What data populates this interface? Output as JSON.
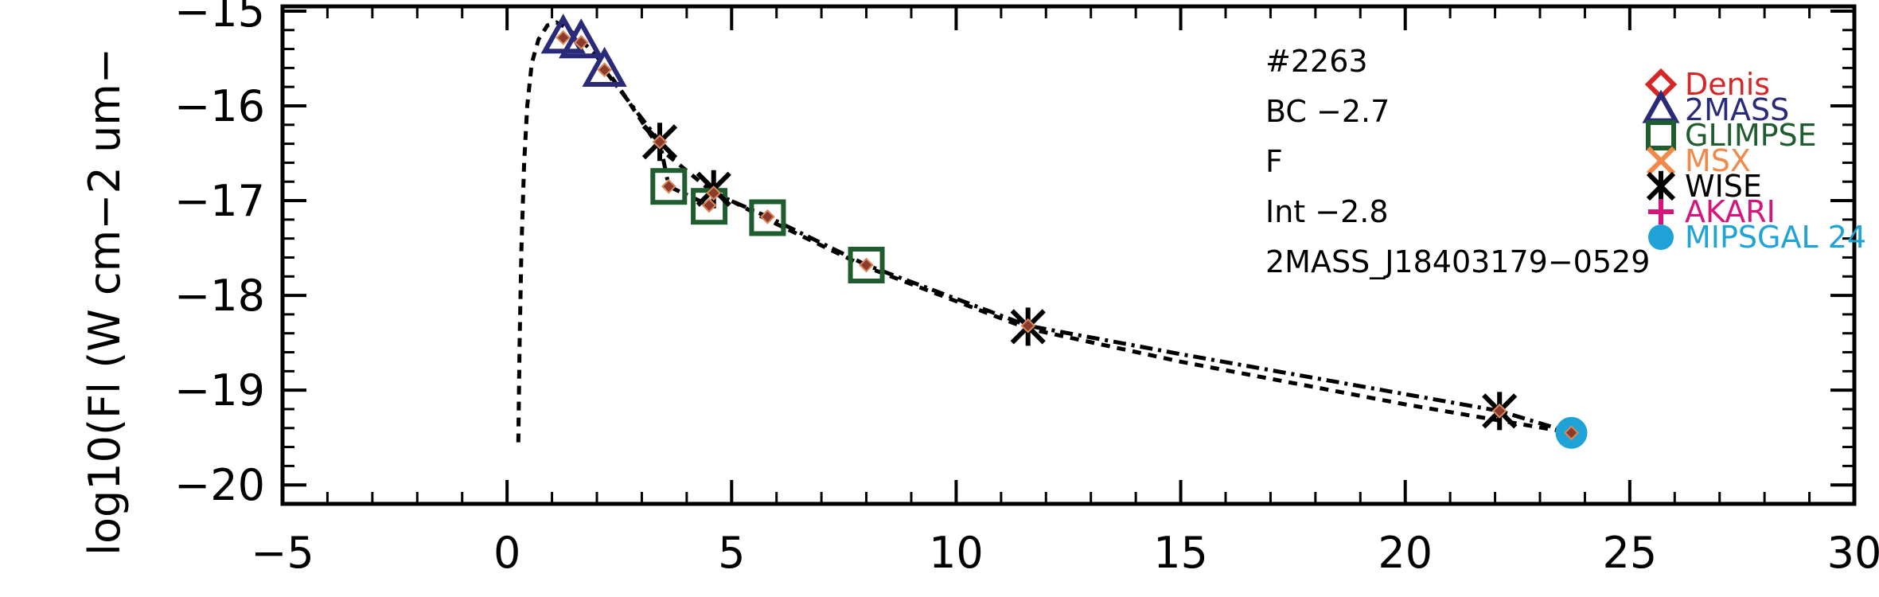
{
  "chart_data": {
    "type": "scatter",
    "ylabel": "log10(Fl (W cm−2 um−",
    "xlim": [
      -5,
      30
    ],
    "ylim": [
      -20.2,
      -14.95
    ],
    "x_ticks": [
      -5,
      0,
      5,
      10,
      15,
      20,
      25,
      30
    ],
    "x_tick_labels": [
      "−5",
      "0",
      "5",
      "10",
      "15",
      "20",
      "25",
      "30"
    ],
    "y_ticks": [
      -20,
      -19,
      -18,
      -17,
      -16,
      -15
    ],
    "y_tick_labels": [
      "−20",
      "−19",
      "−18",
      "−17",
      "−16",
      "−15"
    ],
    "annotations": [
      "#2263",
      "BC −2.7",
      "F",
      "Int −2.8",
      "2MASS_J18403179−0529"
    ],
    "legend_position": "top-right",
    "legend": [
      {
        "name": "Denis",
        "marker": "diamond",
        "color": "#d62728"
      },
      {
        "name": "2MASS",
        "marker": "triangle",
        "color": "#2a2a7a"
      },
      {
        "name": "GLIMPSE",
        "marker": "square",
        "color": "#1f5c2e"
      },
      {
        "name": "MSX",
        "marker": "x",
        "color": "#f08a4b"
      },
      {
        "name": "WISE",
        "marker": "asterisk",
        "color": "#000000"
      },
      {
        "name": "AKARI",
        "marker": "plus",
        "color": "#d6147a"
      },
      {
        "name": "MIPSGAL 24",
        "marker": "circle",
        "color": "#1fa2d6"
      }
    ],
    "series": [
      {
        "name": "2MASS",
        "marker": "triangle",
        "color": "#2a2a7a",
        "points": [
          [
            1.25,
            -15.28
          ],
          [
            1.65,
            -15.33
          ],
          [
            2.17,
            -15.63
          ]
        ]
      },
      {
        "name": "GLIMPSE",
        "marker": "square",
        "color": "#1f5c2e",
        "points": [
          [
            3.6,
            -16.85
          ],
          [
            4.5,
            -17.06
          ],
          [
            5.8,
            -17.18
          ],
          [
            8.0,
            -17.68
          ]
        ]
      },
      {
        "name": "WISE",
        "marker": "asterisk",
        "color": "#000000",
        "points": [
          [
            3.4,
            -16.38
          ],
          [
            4.6,
            -16.88
          ],
          [
            11.6,
            -18.33
          ],
          [
            22.1,
            -19.22
          ]
        ]
      },
      {
        "name": "MIPSGAL 24",
        "marker": "circle",
        "color": "#1fa2d6",
        "points": [
          [
            23.7,
            -19.45
          ]
        ]
      }
    ],
    "model_points": [
      [
        1.25,
        -15.28
      ],
      [
        1.65,
        -15.33
      ],
      [
        2.17,
        -15.62
      ],
      [
        3.4,
        -16.38
      ],
      [
        3.6,
        -16.85
      ],
      [
        4.5,
        -17.05
      ],
      [
        4.6,
        -16.92
      ],
      [
        5.8,
        -17.17
      ],
      [
        8.0,
        -17.68
      ],
      [
        11.6,
        -18.32
      ],
      [
        22.1,
        -19.22
      ],
      [
        23.7,
        -19.45
      ]
    ],
    "model_curve_dashed": [
      [
        0.25,
        -19.55
      ],
      [
        0.28,
        -18.5
      ],
      [
        0.32,
        -17.5
      ],
      [
        0.38,
        -16.6
      ],
      [
        0.45,
        -16.0
      ],
      [
        0.55,
        -15.55
      ],
      [
        0.7,
        -15.3
      ],
      [
        0.9,
        -15.15
      ],
      [
        1.1,
        -15.12
      ],
      [
        1.3,
        -15.17
      ],
      [
        1.6,
        -15.28
      ],
      [
        2.0,
        -15.48
      ],
      [
        2.6,
        -15.88
      ],
      [
        3.4,
        -16.45
      ],
      [
        4.5,
        -16.88
      ],
      [
        5.8,
        -17.2
      ],
      [
        8.0,
        -17.7
      ],
      [
        11.6,
        -18.35
      ],
      [
        15.0,
        -18.7
      ],
      [
        20.0,
        -19.15
      ],
      [
        23.7,
        -19.45
      ]
    ],
    "model_curve_dashdot": [
      [
        2.17,
        -15.62
      ],
      [
        3.4,
        -16.38
      ],
      [
        3.6,
        -16.85
      ],
      [
        4.5,
        -17.05
      ],
      [
        4.6,
        -16.92
      ],
      [
        5.8,
        -17.17
      ],
      [
        8.0,
        -17.68
      ],
      [
        11.6,
        -18.32
      ],
      [
        15.0,
        -18.62
      ],
      [
        22.1,
        -19.22
      ],
      [
        23.7,
        -19.45
      ]
    ]
  }
}
